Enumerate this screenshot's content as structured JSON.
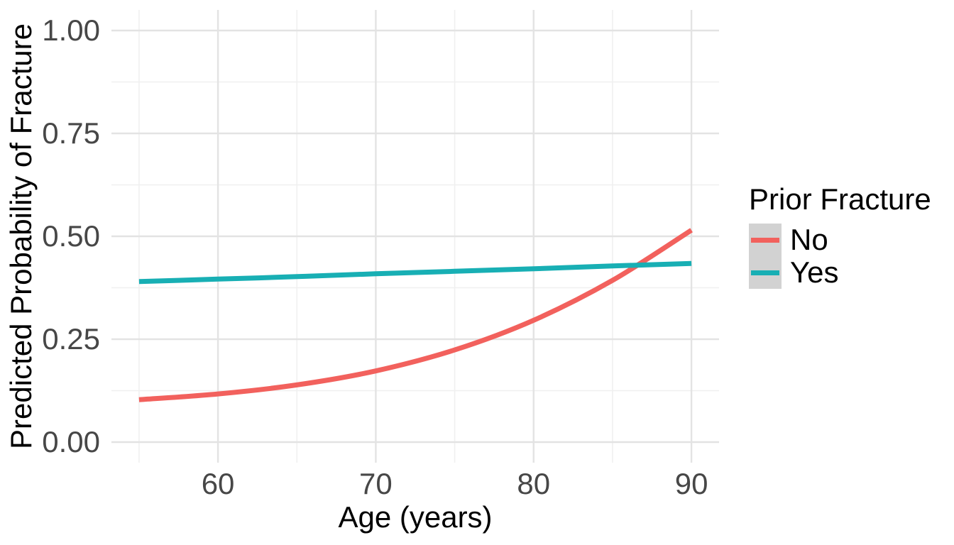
{
  "chart_data": {
    "type": "line",
    "title": "",
    "xlabel": "Age (years)",
    "ylabel": "Predicted Probability of Fracture",
    "x": [
      55,
      60,
      65,
      70,
      75,
      80,
      85,
      90
    ],
    "series": [
      {
        "name": "No",
        "color": "#F2615D",
        "values": [
          0.103,
          0.117,
          0.139,
          0.173,
          0.224,
          0.296,
          0.393,
          0.515
        ]
      },
      {
        "name": "Yes",
        "color": "#18AFB4",
        "values": [
          0.39,
          0.396,
          0.402,
          0.409,
          0.415,
          0.421,
          0.428,
          0.434
        ]
      }
    ],
    "xlim": [
      53.25,
      91.75
    ],
    "ylim": [
      -0.05,
      1.05
    ],
    "x_ticks": [
      60,
      70,
      80,
      90
    ],
    "x_tick_labels": [
      "60",
      "70",
      "80",
      "90"
    ],
    "y_ticks": [
      0,
      0.25,
      0.5,
      0.75,
      1
    ],
    "y_tick_labels": [
      "0.00",
      "0.25",
      "0.50",
      "0.75",
      "1.00"
    ],
    "grid": {
      "major": true,
      "minor": true
    },
    "legend": {
      "title": "Prior Fracture",
      "position": "right"
    }
  },
  "styles": {
    "background": "#FFFFFF",
    "grid_major_color": "#E3E3E3",
    "grid_minor_color": "#F0F0F0",
    "tick_label_color": "#474747",
    "axis_title_color": "#000000",
    "legend_key_fill": "#D2D2D2",
    "series_line_width": 7
  }
}
